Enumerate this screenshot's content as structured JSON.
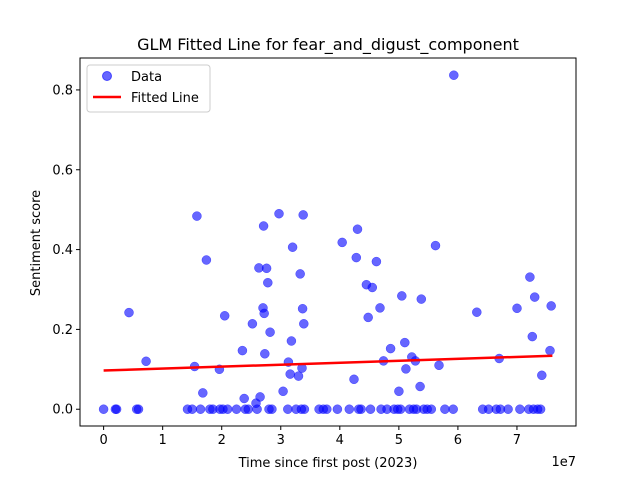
{
  "colors": {
    "data_fill": "#0000ff",
    "data_alpha": 0.6,
    "fit_line": "#ff0000",
    "axes": "#000000",
    "background": "#ffffff"
  },
  "chart_data": {
    "type": "scatter",
    "title": "GLM Fitted Line for fear_and_digust_component",
    "xlabel": "Time since first post (2023)",
    "ylabel": "Sentiment score",
    "x_offset_label": "1e7",
    "xlim": [
      -4000000,
      80000000
    ],
    "ylim": [
      -0.042,
      0.88
    ],
    "xticks": [
      0,
      1,
      2,
      3,
      4,
      5,
      6,
      7
    ],
    "xtick_labels": [
      "0",
      "1",
      "2",
      "3",
      "4",
      "5",
      "6",
      "7"
    ],
    "yticks": [
      0.0,
      0.2,
      0.4,
      0.6,
      0.8
    ],
    "ytick_labels": [
      "0.0",
      "0.2",
      "0.4",
      "0.6",
      "0.8"
    ],
    "grid": false,
    "legend": {
      "placement": "top-left",
      "entries": [
        "Data",
        "Fitted Line"
      ]
    },
    "series": [
      {
        "name": "Data",
        "type": "scatter",
        "points": [
          [
            0,
            0
          ],
          [
            2000000,
            0
          ],
          [
            2200000,
            0
          ],
          [
            4300000,
            0.242
          ],
          [
            5600000,
            0
          ],
          [
            5900000,
            0
          ],
          [
            7200000,
            0.12
          ],
          [
            14200000,
            0
          ],
          [
            15000000,
            0
          ],
          [
            15400000,
            0.107
          ],
          [
            15800000,
            0.484
          ],
          [
            16400000,
            0
          ],
          [
            16800000,
            0.041
          ],
          [
            17400000,
            0.374
          ],
          [
            18000000,
            0
          ],
          [
            18500000,
            0
          ],
          [
            19600000,
            0.1
          ],
          [
            19700000,
            0
          ],
          [
            20200000,
            0
          ],
          [
            20500000,
            0.234
          ],
          [
            21000000,
            0
          ],
          [
            22500000,
            0
          ],
          [
            23500000,
            0.147
          ],
          [
            23800000,
            0.027
          ],
          [
            24000000,
            0
          ],
          [
            24500000,
            0
          ],
          [
            25200000,
            0.214
          ],
          [
            25800000,
            0.015
          ],
          [
            26000000,
            0
          ],
          [
            26300000,
            0.354
          ],
          [
            26500000,
            0.031
          ],
          [
            27000000,
            0.254
          ],
          [
            27100000,
            0.459
          ],
          [
            27200000,
            0.24
          ],
          [
            27300000,
            0.139
          ],
          [
            27600000,
            0.353
          ],
          [
            27800000,
            0.317
          ],
          [
            28000000,
            0
          ],
          [
            28200000,
            0.193
          ],
          [
            28500000,
            0
          ],
          [
            29700000,
            0.49
          ],
          [
            30400000,
            0.045
          ],
          [
            31200000,
            0
          ],
          [
            31300000,
            0.118
          ],
          [
            31600000,
            0.088
          ],
          [
            31800000,
            0.171
          ],
          [
            32000000,
            0.406
          ],
          [
            32600000,
            0
          ],
          [
            33000000,
            0.083
          ],
          [
            33300000,
            0.339
          ],
          [
            33500000,
            0
          ],
          [
            33600000,
            0.103
          ],
          [
            33700000,
            0.252
          ],
          [
            33800000,
            0.487
          ],
          [
            33900000,
            0.214
          ],
          [
            34000000,
            0
          ],
          [
            36500000,
            0
          ],
          [
            37200000,
            0
          ],
          [
            37800000,
            0
          ],
          [
            39600000,
            0
          ],
          [
            40400000,
            0.418
          ],
          [
            41600000,
            0
          ],
          [
            42400000,
            0.075
          ],
          [
            42800000,
            0.38
          ],
          [
            43000000,
            0.451
          ],
          [
            43200000,
            0
          ],
          [
            43600000,
            0
          ],
          [
            44500000,
            0.312
          ],
          [
            44800000,
            0.23
          ],
          [
            45200000,
            0
          ],
          [
            45500000,
            0.305
          ],
          [
            46200000,
            0.37
          ],
          [
            46800000,
            0.254
          ],
          [
            47000000,
            0
          ],
          [
            47400000,
            0.121
          ],
          [
            48000000,
            0
          ],
          [
            48600000,
            0.152
          ],
          [
            49200000,
            0
          ],
          [
            49800000,
            0
          ],
          [
            50000000,
            0.045
          ],
          [
            50300000,
            0
          ],
          [
            50500000,
            0.284
          ],
          [
            51000000,
            0.167
          ],
          [
            51200000,
            0.101
          ],
          [
            51800000,
            0
          ],
          [
            52200000,
            0.131
          ],
          [
            52500000,
            0
          ],
          [
            52800000,
            0.121
          ],
          [
            53000000,
            0
          ],
          [
            53600000,
            0.057
          ],
          [
            53800000,
            0.276
          ],
          [
            54200000,
            0
          ],
          [
            54800000,
            0
          ],
          [
            55500000,
            0
          ],
          [
            56200000,
            0.41
          ],
          [
            56800000,
            0.11
          ],
          [
            57800000,
            0
          ],
          [
            59200000,
            0
          ],
          [
            59300000,
            0.837
          ],
          [
            63200000,
            0.243
          ],
          [
            64200000,
            0
          ],
          [
            65200000,
            0
          ],
          [
            66500000,
            0
          ],
          [
            67000000,
            0.127
          ],
          [
            67200000,
            0
          ],
          [
            68500000,
            0
          ],
          [
            70000000,
            0.253
          ],
          [
            70500000,
            0
          ],
          [
            72000000,
            0
          ],
          [
            72200000,
            0.331
          ],
          [
            72600000,
            0.182
          ],
          [
            72800000,
            0
          ],
          [
            73000000,
            0.281
          ],
          [
            73500000,
            0
          ],
          [
            74000000,
            0
          ],
          [
            74200000,
            0.085
          ],
          [
            75600000,
            0.147
          ],
          [
            75800000,
            0.259
          ]
        ]
      },
      {
        "name": "Fitted Line",
        "type": "line",
        "x": [
          0,
          76000000
        ],
        "y": [
          0.097,
          0.134
        ]
      }
    ]
  }
}
